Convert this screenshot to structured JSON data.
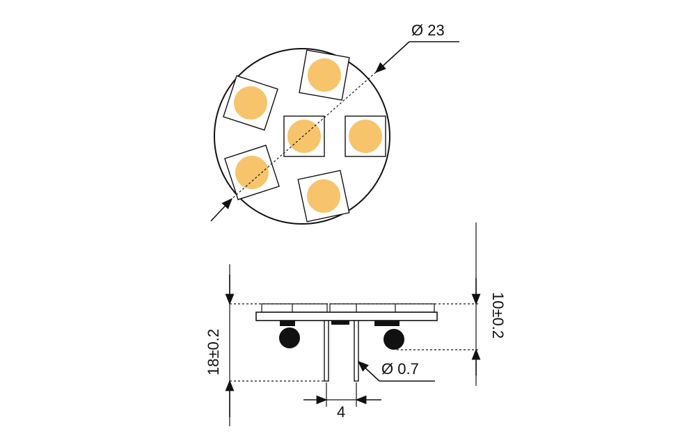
{
  "dimensions": {
    "diameter": "Ø 23",
    "pin_diameter": "Ø 0.7",
    "pin_spacing": "4",
    "overall_height": "18±0.2",
    "component_height": "10±0.2"
  },
  "colors": {
    "led": "#f7c46c",
    "outline": "#111111",
    "background": "#ffffff",
    "component": "#111111"
  },
  "led_count": 6
}
